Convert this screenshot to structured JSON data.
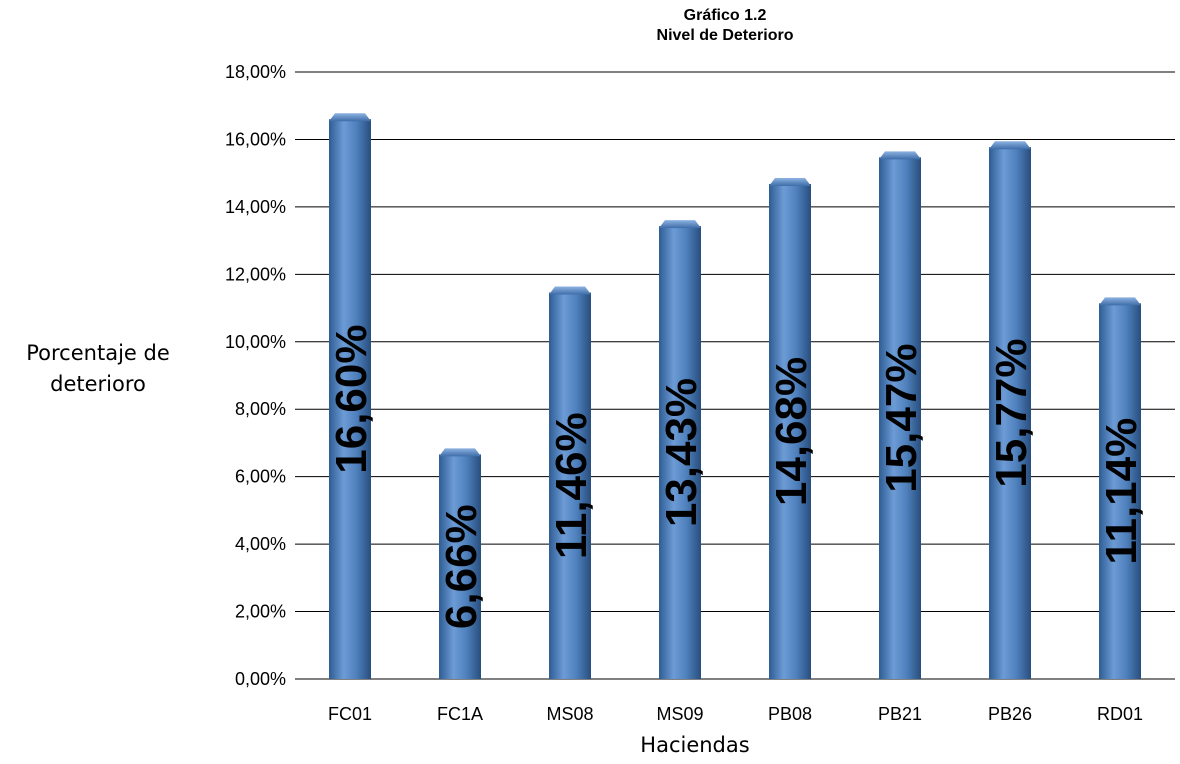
{
  "chart_data": {
    "type": "bar",
    "title": "Gráfico 1.2",
    "subtitle": "Nivel de Deterioro",
    "xlabel": "Haciendas",
    "ylabel_lines": [
      "Porcentaje de",
      "deterioro"
    ],
    "categories": [
      "FC01",
      "FC1A",
      "MS08",
      "MS09",
      "PB08",
      "PB21",
      "PB26",
      "RD01"
    ],
    "values": [
      16.6,
      6.66,
      11.46,
      13.43,
      14.68,
      15.47,
      15.77,
      11.14
    ],
    "data_labels": [
      "16,60%",
      "6,66%",
      "11,46%",
      "13,43%",
      "14,68%",
      "15,47%",
      "15,77%",
      "11,14%"
    ],
    "ylim": [
      0,
      18
    ],
    "yticks": [
      0,
      2,
      4,
      6,
      8,
      10,
      12,
      14,
      16,
      18
    ],
    "ytick_labels": [
      "0,00%",
      "2,00%",
      "4,00%",
      "6,00%",
      "8,00%",
      "10,00%",
      "12,00%",
      "14,00%",
      "16,00%",
      "18,00%"
    ],
    "grid": true,
    "bar_color": "#4F81BD"
  }
}
